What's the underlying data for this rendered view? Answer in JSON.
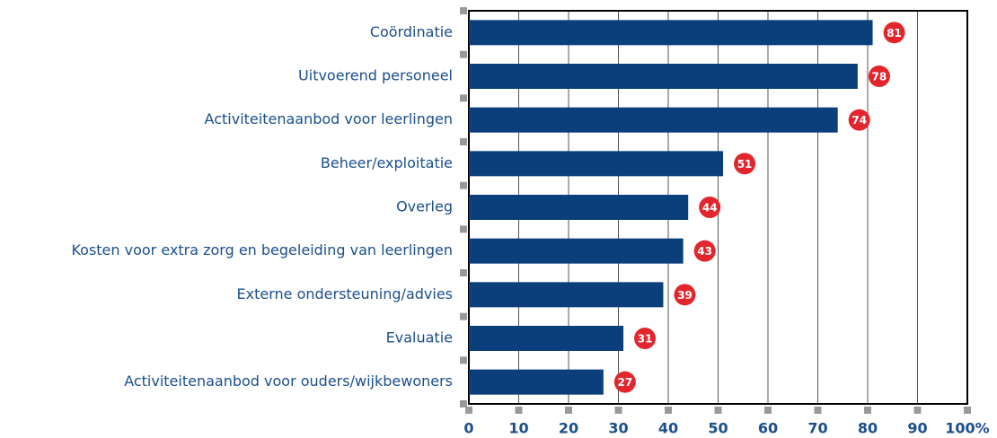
{
  "chart_data": {
    "type": "bar",
    "orientation": "horizontal",
    "categories": [
      "Coördinatie",
      "Uitvoerend personeel",
      "Activiteitenaanbod voor leerlingen",
      "Beheer/exploitatie",
      "Overleg",
      "Kosten voor extra zorg en begeleiding van leerlingen",
      "Externe ondersteuning/advies",
      "Evaluatie",
      "Activiteitenaanbod voor ouders/wijkbewoners"
    ],
    "values": [
      81,
      78,
      74,
      51,
      44,
      43,
      39,
      31,
      27
    ],
    "color": "#0b3f7c",
    "label_color": "#e3262d",
    "xlim": [
      0,
      100
    ],
    "xticks": [
      0,
      10,
      20,
      30,
      40,
      50,
      60,
      70,
      80,
      90,
      {
        "value": 100,
        "label": "100%"
      }
    ],
    "grid": true
  }
}
